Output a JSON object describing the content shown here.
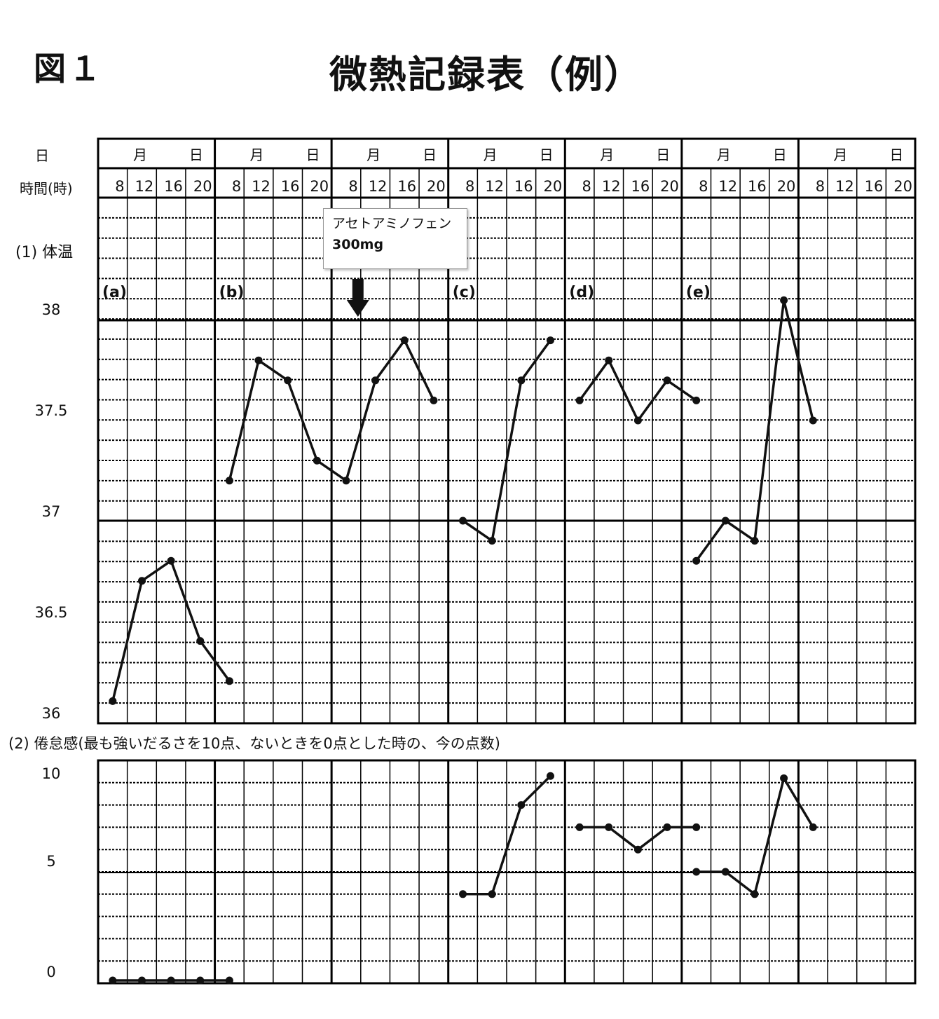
{
  "header": {
    "figure_label": "図１",
    "title": "微熱記録表（例）"
  },
  "row_labels": {
    "day": "日",
    "time": "時間(時)"
  },
  "day_cell": {
    "month": "月",
    "day": "日"
  },
  "time_ticks": [
    "8",
    "12",
    "16",
    "20"
  ],
  "temperature_section": {
    "title": "(1) 体温"
  },
  "fatigue_section": {
    "title": "(2) 倦怠感(最も強いだるさを10点、ないときを0点とした時の、今の点数)"
  },
  "annotation": {
    "line1": "アセトアミノフェン",
    "line2": "300mg",
    "arrow": "down-arrow"
  },
  "colors": {
    "line": "#111111",
    "grid": "#000000"
  },
  "chart_data": [
    {
      "type": "line",
      "title": "(1) 体温",
      "categories": [
        "月日1 8",
        "月日1 12",
        "月日1 16",
        "月日1 20",
        "月日2 8",
        "月日2 12",
        "月日2 16",
        "月日2 20",
        "月日3 8",
        "月日3 12",
        "月日3 16",
        "月日3 20",
        "月日4 8",
        "月日4 12",
        "月日4 16",
        "月日4 20",
        "月日5 8",
        "月日5 12",
        "月日5 16",
        "月日5 20",
        "月日6 8",
        "月日6 12",
        "月日6 16",
        "月日6 20",
        "月日7 8",
        "月日7 12",
        "月日7 16",
        "月日7 20"
      ],
      "yticks": [
        "36",
        "36.5",
        "37",
        "37.5",
        "38"
      ],
      "ylim": [
        36,
        38.2
      ],
      "grid": true,
      "series": [
        {
          "name": "(a)",
          "points": [
            [
              0,
              36.1
            ],
            [
              1,
              36.7
            ],
            [
              2,
              36.8
            ],
            [
              3,
              36.4
            ],
            [
              4,
              36.2
            ]
          ]
        },
        {
          "name": "(b)",
          "points": [
            [
              4,
              37.2
            ],
            [
              5,
              37.8
            ],
            [
              6,
              37.7
            ],
            [
              7,
              37.3
            ],
            [
              8,
              37.2
            ],
            [
              9,
              37.7
            ],
            [
              10,
              37.9
            ],
            [
              11,
              37.6
            ]
          ]
        },
        {
          "name": "(c)",
          "points": [
            [
              12,
              37.0
            ],
            [
              13,
              36.9
            ],
            [
              14,
              37.7
            ],
            [
              15,
              37.9
            ]
          ]
        },
        {
          "name": "(d)",
          "points": [
            [
              16,
              37.6
            ],
            [
              17,
              37.8
            ],
            [
              18,
              37.5
            ],
            [
              19,
              37.7
            ],
            [
              20,
              37.6
            ]
          ]
        },
        {
          "name": "(e)",
          "points": [
            [
              20,
              36.8
            ],
            [
              21,
              37.0
            ],
            [
              22,
              36.9
            ],
            [
              23,
              38.1
            ],
            [
              24,
              37.5
            ]
          ]
        }
      ]
    },
    {
      "type": "line",
      "title": "(2) 倦怠感(最も強いだるさを10点、ないときを0点とした時の、今の点数)",
      "yticks": [
        "0",
        "5",
        "10"
      ],
      "ylim": [
        0,
        10
      ],
      "grid": true,
      "series": [
        {
          "points": [
            [
              0,
              0
            ],
            [
              1,
              0
            ],
            [
              2,
              0
            ],
            [
              3,
              0
            ],
            [
              4,
              0
            ]
          ]
        },
        {
          "points": [
            [
              12,
              4
            ],
            [
              13,
              4
            ],
            [
              14,
              8
            ],
            [
              15,
              9.3
            ]
          ]
        },
        {
          "points": [
            [
              16,
              7
            ],
            [
              17,
              7
            ],
            [
              18,
              6
            ],
            [
              19,
              7
            ],
            [
              20,
              7
            ]
          ]
        },
        {
          "points": [
            [
              20,
              5
            ],
            [
              21,
              5
            ],
            [
              22,
              4
            ],
            [
              23,
              9.2
            ],
            [
              24,
              7
            ]
          ]
        }
      ]
    }
  ]
}
